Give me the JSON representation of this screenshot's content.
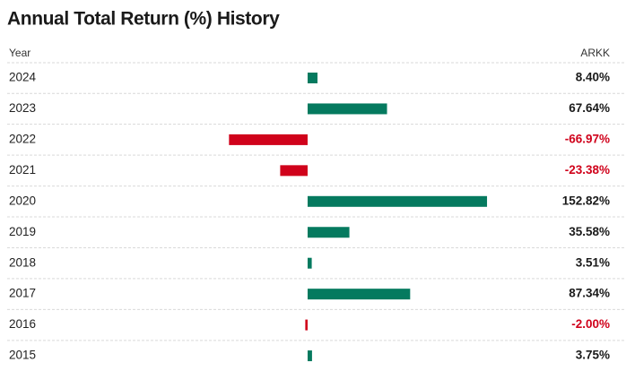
{
  "chart_data": {
    "type": "bar",
    "title": "Annual Total Return (%) History",
    "x_label": "Year",
    "categories": [
      "2024",
      "2023",
      "2022",
      "2021",
      "2020",
      "2019",
      "2018",
      "2017",
      "2016",
      "2015"
    ],
    "series": [
      {
        "name": "ARKK",
        "color": "#057a5f",
        "negative_color": "#d0021b",
        "values": [
          8.4,
          67.64,
          -66.97,
          -23.38,
          152.82,
          35.58,
          3.51,
          87.34,
          -2.0,
          3.75
        ],
        "value_labels": [
          "8.40%",
          "67.64%",
          "-66.97%",
          "-23.38%",
          "152.82%",
          "35.58%",
          "3.51%",
          "87.34%",
          "-2.00%",
          "3.75%"
        ]
      }
    ]
  }
}
